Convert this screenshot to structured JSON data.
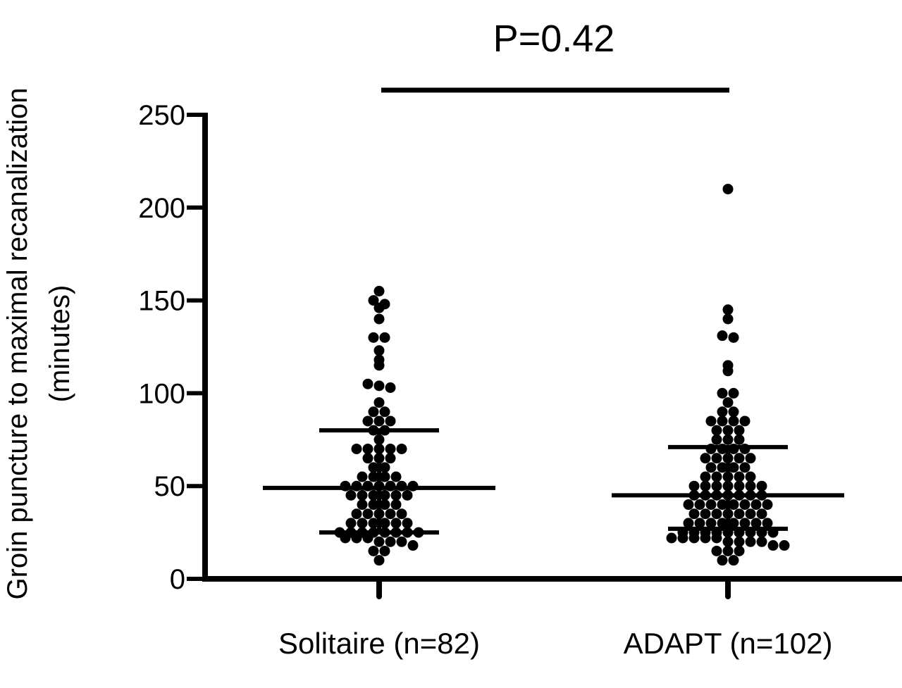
{
  "chart_data": {
    "type": "scatter",
    "subtype": "dot-plot-with-median-iqr",
    "ylabel_lines": [
      "Groin puncture to maximal recanalization",
      "(minutes)"
    ],
    "ylim": [
      0,
      250
    ],
    "yticks": [
      {
        "value": 0,
        "label": "0"
      },
      {
        "value": 50,
        "label": "50"
      },
      {
        "value": 100,
        "label": "100"
      },
      {
        "value": 150,
        "label": "150"
      },
      {
        "value": 200,
        "label": "200"
      },
      {
        "value": 250,
        "label": "250"
      }
    ],
    "categories": [
      "Solitaire (n=82)",
      "ADAPT (n=102)"
    ],
    "annotation": "P=0.42",
    "grid": false,
    "colors": {
      "marks": "#000000",
      "background": "#ffffff"
    },
    "series": [
      {
        "median": 49,
        "q1": 25,
        "q3": 80,
        "values": [
          155,
          150,
          148,
          146,
          140,
          130,
          130,
          123,
          118,
          115,
          105,
          104,
          103,
          95,
          90,
          90,
          85,
          85,
          85,
          80,
          80,
          75,
          70,
          70,
          70,
          70,
          70,
          65,
          65,
          65,
          60,
          60,
          55,
          55,
          55,
          55,
          50,
          50,
          50,
          50,
          50,
          50,
          50,
          45,
          45,
          45,
          45,
          45,
          45,
          40,
          40,
          40,
          40,
          35,
          35,
          35,
          35,
          35,
          30,
          30,
          30,
          30,
          30,
          30,
          25,
          25,
          25,
          25,
          25,
          25,
          25,
          25,
          22,
          22,
          22,
          20,
          20,
          20,
          18,
          15,
          15,
          10
        ]
      },
      {
        "median": 45,
        "q1": 27,
        "q3": 71,
        "values": [
          210,
          145,
          140,
          131,
          130,
          115,
          112,
          100,
          100,
          95,
          90,
          90,
          85,
          85,
          85,
          85,
          80,
          80,
          80,
          75,
          75,
          75,
          70,
          70,
          70,
          70,
          65,
          65,
          65,
          65,
          65,
          60,
          60,
          60,
          60,
          55,
          55,
          55,
          55,
          55,
          50,
          50,
          50,
          50,
          50,
          50,
          50,
          45,
          45,
          45,
          45,
          45,
          45,
          45,
          40,
          40,
          40,
          40,
          40,
          40,
          40,
          40,
          35,
          35,
          35,
          35,
          35,
          35,
          35,
          30,
          30,
          30,
          30,
          30,
          30,
          30,
          30,
          25,
          25,
          25,
          25,
          25,
          25,
          25,
          25,
          25,
          22,
          22,
          22,
          22,
          22,
          20,
          20,
          20,
          20,
          18,
          18,
          15,
          15,
          15,
          10,
          10
        ]
      }
    ]
  }
}
